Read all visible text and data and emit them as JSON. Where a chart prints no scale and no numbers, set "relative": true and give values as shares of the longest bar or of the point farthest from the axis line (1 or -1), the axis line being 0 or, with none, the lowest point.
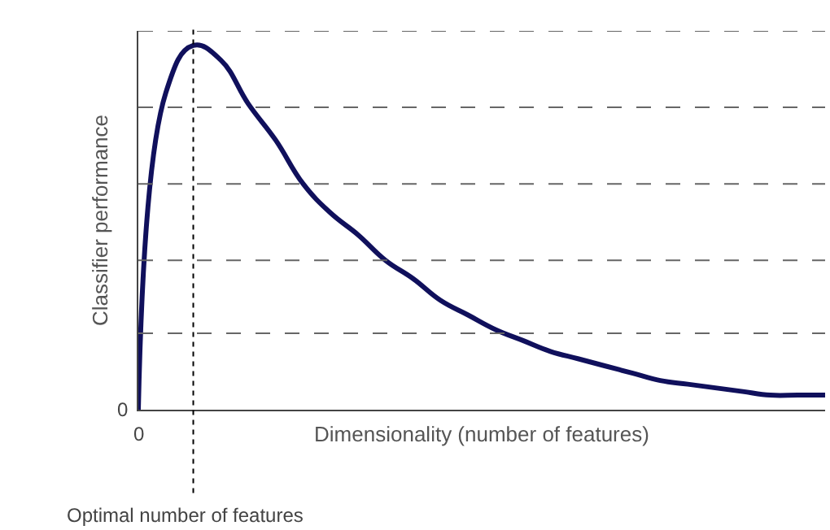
{
  "chart_data": {
    "type": "line",
    "relative": true,
    "xlabel": "Dimensionality (number of features)",
    "ylabel": "Classifier performance",
    "categories": [
      null,
      null,
      null,
      null,
      null,
      null,
      null,
      null,
      null,
      null,
      null,
      null,
      null,
      null,
      null,
      null,
      null,
      null,
      null,
      null,
      null,
      null,
      null,
      null,
      null,
      null
    ],
    "series": [
      {
        "color": "#10105c",
        "values": [
          0,
          0.87,
          1,
          0.96,
          0.84,
          0.74,
          0.62,
          0.54,
          0.48,
          0.41,
          0.36,
          0.3,
          0.26,
          0.22,
          0.19,
          0.16,
          0.14,
          0.12,
          0.1,
          0.08,
          0.07,
          0.06,
          0.05,
          0.04,
          0.04,
          0.04
        ]
      }
    ],
    "annotations": [
      "0",
      "0",
      "Optimal number of features"
    ],
    "ref_lines": [
      {
        "axis": "y",
        "value": 0.21,
        "color": "#666666",
        "line_style": "dashed"
      },
      {
        "axis": "y",
        "value": 0.41,
        "color": "#666666",
        "line_style": "dashed"
      },
      {
        "axis": "y",
        "value": 0.62,
        "color": "#666666",
        "line_style": "dashed"
      },
      {
        "axis": "y",
        "value": 0.83,
        "color": "#666666",
        "line_style": "dashed"
      },
      {
        "axis": "y",
        "value": 1.04,
        "color": "#666666",
        "line_style": "dashed"
      }
    ]
  }
}
